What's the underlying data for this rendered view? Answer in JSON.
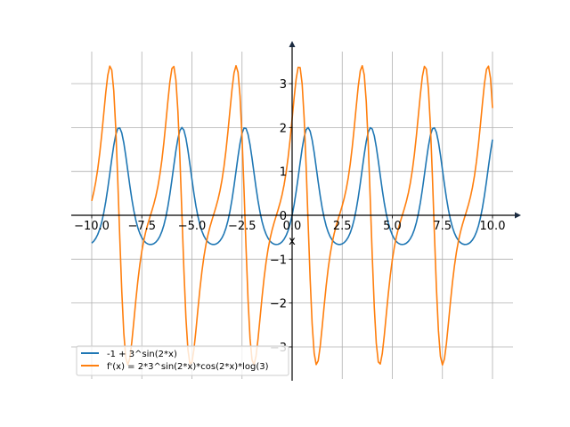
{
  "chart_data": {
    "type": "line",
    "title": "",
    "xlabel": "x",
    "ylabel": "",
    "xlim": [
      -10.5,
      11.5
    ],
    "ylim": [
      -3.7,
      3.8
    ],
    "grid": true,
    "legend_position": "lower-left",
    "x_ticks": [
      -10.0,
      -7.5,
      -5.0,
      -2.5,
      0.0,
      2.5,
      5.0,
      7.5,
      10.0
    ],
    "x_tick_labels": [
      "−10.0",
      "−7.5",
      "−5.0",
      "−2.5",
      "0.0",
      "2.5",
      "5.0",
      "7.5",
      "10.0"
    ],
    "y_ticks": [
      -3,
      -2,
      -1,
      0,
      1,
      2,
      3
    ],
    "y_tick_labels": [
      "−3",
      "−2",
      "−1",
      "0",
      "1",
      "2",
      "3"
    ],
    "x_range": [
      -10,
      10
    ],
    "sample_step": 0.1,
    "series": [
      {
        "name": "-1 + 3^sin(2*x)",
        "color": "#1f77b4",
        "expression": "-1 + 3^sin(2*x)"
      },
      {
        "name": "f'(x) = 2*3^sin(2*x)*cos(2*x)*log(3)",
        "color": "#ff7f0e",
        "expression": "2*3^sin(2*x)*cos(2*x)*log(3)"
      }
    ]
  },
  "colors": {
    "grid": "#b0b0b0",
    "axis": "#000000",
    "arrow": "#1a2a40"
  }
}
